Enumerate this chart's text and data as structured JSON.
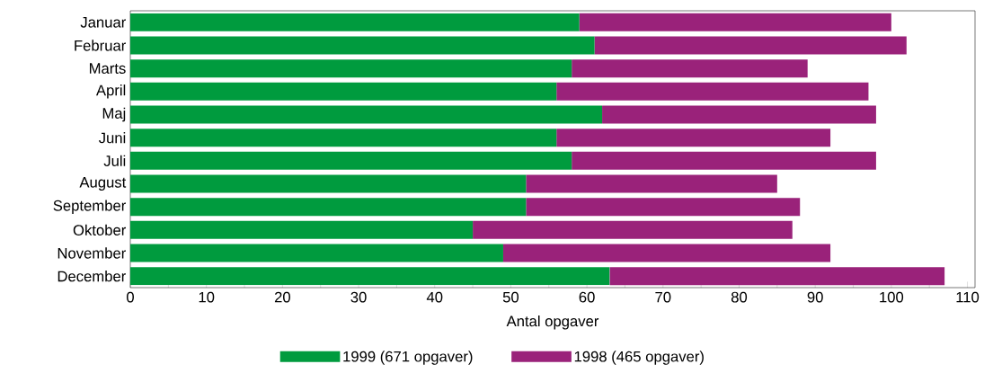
{
  "chart_data": {
    "type": "bar",
    "orientation": "horizontal",
    "stacked": true,
    "xlabel": "Antal opgaver",
    "categories": [
      "Januar",
      "Februar",
      "Marts",
      "April",
      "Maj",
      "Juni",
      "Juli",
      "August",
      "September",
      "Oktober",
      "November",
      "December"
    ],
    "series": [
      {
        "name": "1999 (671 opgaver)",
        "color": "#009b3e",
        "values": [
          59,
          61,
          58,
          56,
          62,
          56,
          58,
          52,
          52,
          45,
          49,
          63
        ]
      },
      {
        "name": "1998 (465 opgaver)",
        "color": "#9a227a",
        "values": [
          41,
          41,
          31,
          41,
          36,
          36,
          40,
          33,
          36,
          42,
          43,
          44
        ]
      }
    ],
    "xlim": [
      0,
      111
    ],
    "xticks": [
      0,
      10,
      20,
      30,
      40,
      50,
      60,
      70,
      80,
      90,
      100,
      110
    ],
    "legend": "bottom"
  }
}
